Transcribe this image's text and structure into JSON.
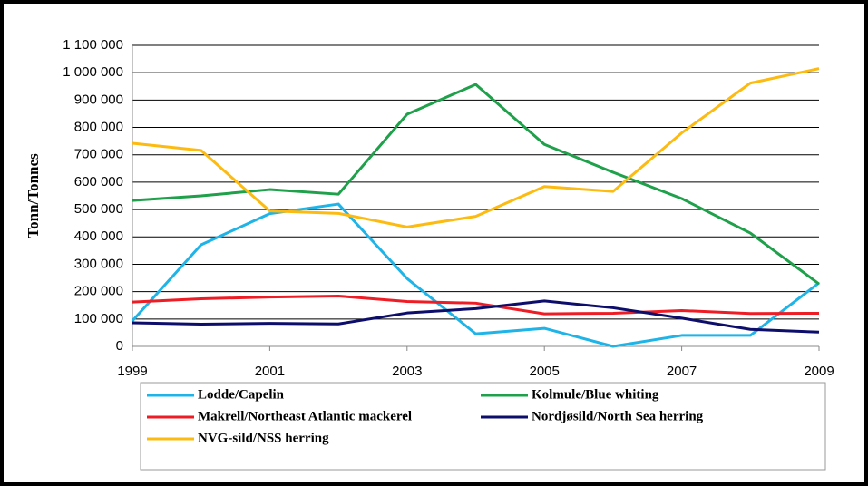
{
  "chart_data": {
    "type": "line",
    "y_label": "Tonn/Tonnes",
    "x": [
      1999,
      2000,
      2001,
      2002,
      2003,
      2004,
      2005,
      2006,
      2007,
      2008,
      2009
    ],
    "xlim": [
      1999,
      2009
    ],
    "xticks": [
      1999,
      2001,
      2003,
      2005,
      2007,
      2009
    ],
    "ylim": [
      0,
      1100000
    ],
    "yticks": [
      0,
      {
        "value": 100000,
        "label": "100 000"
      },
      {
        "value": 200000,
        "label": "200 000"
      },
      {
        "value": 300000,
        "label": "300 000"
      },
      {
        "value": 400000,
        "label": "400 000"
      },
      {
        "value": 500000,
        "label": "500 000"
      },
      {
        "value": 600000,
        "label": "600 000"
      },
      {
        "value": 700000,
        "label": "700 000"
      },
      {
        "value": 800000,
        "label": "800 000"
      },
      {
        "value": 900000,
        "label": "900 000"
      },
      {
        "value": 1000000,
        "label": "1 000 000"
      },
      {
        "value": 1100000,
        "label": "1 100 000"
      }
    ],
    "grid": true,
    "series": [
      {
        "name": "Lodde/Capelin",
        "color": "#1fb4e8",
        "values": [
          93000,
          371000,
          485000,
          520000,
          248000,
          46000,
          66000,
          0,
          40000,
          40000,
          232000
        ]
      },
      {
        "name": "Kolmule/Blue whiting",
        "color": "#1fa04a",
        "values": [
          533000,
          550000,
          573000,
          556000,
          848000,
          957000,
          738000,
          636000,
          540000,
          414000,
          228000
        ]
      },
      {
        "name": "Makrell/Northeast Atlantic mackerel",
        "color": "#ee1c24",
        "values": [
          162000,
          174000,
          180000,
          184000,
          164000,
          158000,
          119000,
          121000,
          131000,
          120000,
          121000
        ]
      },
      {
        "name": "Nordjøsild/North Sea herring",
        "color": "#0d0d6b",
        "values": [
          86000,
          81000,
          84000,
          82000,
          122000,
          138000,
          166000,
          141000,
          103000,
          62000,
          52000
        ]
      },
      {
        "name": "NVG-sild/NSS herring",
        "color": "#fdbb11",
        "values": [
          742000,
          716000,
          495000,
          486000,
          436000,
          475000,
          584000,
          566000,
          780000,
          962000,
          1015000
        ]
      }
    ]
  }
}
